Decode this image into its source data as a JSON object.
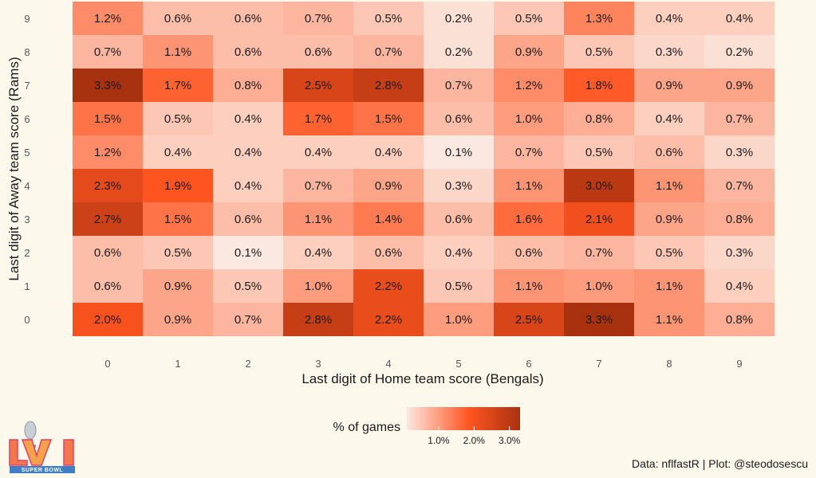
{
  "chart_data": {
    "type": "heatmap",
    "xlabel": "Last digit of Home team score (Bengals)",
    "ylabel": "Last digit of Away team score (Rams)",
    "x_categories": [
      "0",
      "1",
      "2",
      "3",
      "4",
      "5",
      "6",
      "7",
      "8",
      "9"
    ],
    "y_categories": [
      "0",
      "1",
      "2",
      "3",
      "4",
      "5",
      "6",
      "7",
      "8",
      "9"
    ],
    "value_unit": "%",
    "values": [
      [
        2.0,
        0.9,
        0.7,
        2.8,
        2.2,
        1.0,
        2.5,
        3.3,
        1.1,
        0.8
      ],
      [
        0.6,
        0.9,
        0.5,
        1.0,
        2.2,
        0.5,
        1.1,
        1.0,
        1.1,
        0.4
      ],
      [
        0.6,
        0.5,
        0.1,
        0.4,
        0.6,
        0.4,
        0.6,
        0.7,
        0.5,
        0.3
      ],
      [
        2.7,
        1.5,
        0.6,
        1.1,
        1.4,
        0.6,
        1.6,
        2.1,
        0.9,
        0.8
      ],
      [
        2.3,
        1.9,
        0.4,
        0.7,
        0.9,
        0.3,
        1.1,
        3.0,
        1.1,
        0.7
      ],
      [
        1.2,
        0.4,
        0.4,
        0.4,
        0.4,
        0.1,
        0.7,
        0.5,
        0.6,
        0.3
      ],
      [
        1.5,
        0.5,
        0.4,
        1.7,
        1.5,
        0.6,
        1.0,
        0.8,
        0.4,
        0.7
      ],
      [
        3.3,
        1.7,
        0.8,
        2.5,
        2.8,
        0.7,
        1.2,
        1.8,
        0.9,
        0.9
      ],
      [
        0.7,
        1.1,
        0.6,
        0.6,
        0.7,
        0.2,
        0.9,
        0.5,
        0.3,
        0.2
      ],
      [
        1.2,
        0.6,
        0.6,
        0.7,
        0.5,
        0.2,
        0.5,
        1.3,
        0.4,
        0.4
      ]
    ],
    "color_scale": {
      "low": "#fbe8e0",
      "mid": "#ff5520",
      "high": "#a83210",
      "domain": [
        0.1,
        3.3
      ]
    },
    "legend": {
      "title": "% of games",
      "ticks": [
        {
          "value": 1.0,
          "label": "1.0%"
        },
        {
          "value": 2.0,
          "label": "2.0%"
        },
        {
          "value": 3.0,
          "label": "3.0%"
        }
      ],
      "position": "bottom"
    }
  },
  "caption": "Data: nflfastR | Plot: @steodosescu",
  "logo": {
    "name": "super-bowl-lvi-logo",
    "text": "SUPER BOWL",
    "numeral": "LVI"
  }
}
